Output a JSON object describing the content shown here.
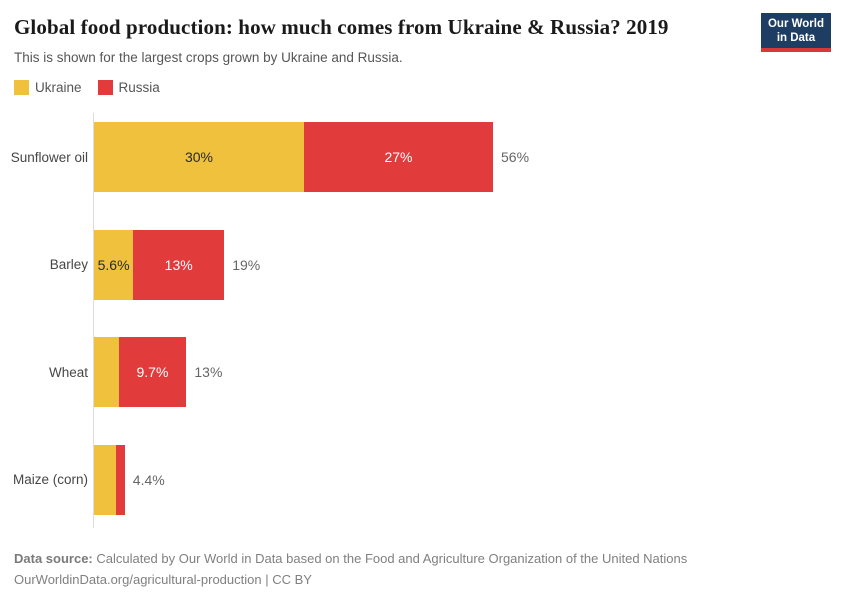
{
  "header": {
    "title": "Global food production: how much comes from Ukraine & Russia? 2019",
    "subtitle": "This is shown for the largest crops grown by Ukraine and Russia.",
    "logo": {
      "line1": "Our World",
      "line2": "in Data"
    }
  },
  "legend": {
    "items": [
      {
        "label": "Ukraine",
        "color": "#f0c13c"
      },
      {
        "label": "Russia",
        "color": "#e23b3c"
      }
    ]
  },
  "chart_data": {
    "type": "bar",
    "orientation": "horizontal",
    "stacked": true,
    "unit": "%",
    "xlim": [
      0,
      100
    ],
    "grid": false,
    "legend_position": "top-left",
    "categories": [
      "Sunflower oil",
      "Barley",
      "Wheat",
      "Maize (corn)"
    ],
    "series": [
      {
        "name": "Ukraine",
        "color": "#f0c13c",
        "values": [
          30,
          5.6,
          3.5,
          3.1
        ],
        "labels": [
          "30%",
          "5.6%",
          "",
          ""
        ],
        "label_color": "dark"
      },
      {
        "name": "Russia",
        "color": "#e23b3c",
        "values": [
          27,
          13,
          9.7,
          1.3
        ],
        "labels": [
          "27%",
          "13%",
          "9.7%",
          ""
        ],
        "label_color": "light"
      }
    ],
    "totals": [
      "56%",
      "19%",
      "13%",
      "4.4%"
    ]
  },
  "footer": {
    "datasource_label": "Data source:",
    "datasource_text": " Calculated by Our World in Data based on the Food and Agriculture Organization of the United Nations",
    "link_line": "OurWorldinData.org/agricultural-production | CC BY"
  }
}
